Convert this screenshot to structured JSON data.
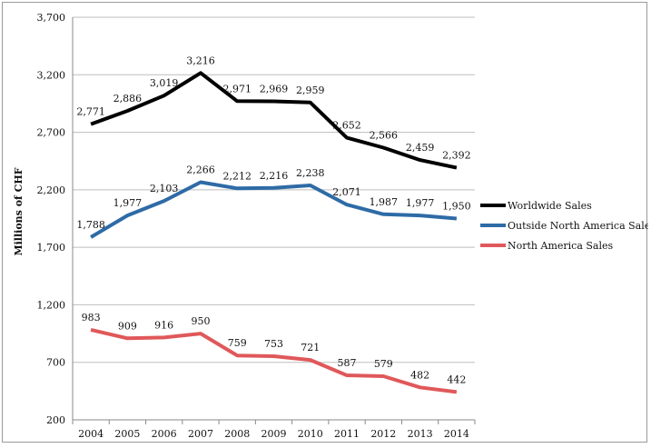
{
  "chart_data": {
    "type": "line",
    "title": "",
    "xlabel": "",
    "ylabel": "Millions of CHF",
    "ylim": [
      200,
      3700
    ],
    "yticks": [
      200,
      700,
      1200,
      1700,
      2200,
      2700,
      3200,
      3700
    ],
    "ytick_labels": [
      "200",
      "700",
      "1,200",
      "1,700",
      "2,200",
      "2,700",
      "3,200",
      "3,700"
    ],
    "grid": "horizontal",
    "legend": "right",
    "categories": [
      "2004",
      "2005",
      "2006",
      "2007",
      "2008",
      "2009",
      "2010",
      "2011",
      "2012",
      "2013",
      "2014"
    ],
    "series": [
      {
        "name": "Worldwide Sales",
        "color": "#000000",
        "values": [
          2771,
          2886,
          3019,
          3216,
          2971,
          2969,
          2959,
          2652,
          2566,
          2459,
          2392
        ],
        "labels": [
          "2,771",
          "2,886",
          "3,019",
          "3,216",
          "2,971",
          "2,969",
          "2,959",
          "2,652",
          "2,566",
          "2,459",
          "2,392"
        ]
      },
      {
        "name": "Outside North America Sales",
        "color": "#2e6ba6",
        "values": [
          1788,
          1977,
          2103,
          2266,
          2212,
          2216,
          2238,
          2071,
          1987,
          1977,
          1950
        ],
        "labels": [
          "1,788",
          "1,977",
          "2,103",
          "2,266",
          "2,212",
          "2,216",
          "2,238",
          "2,071",
          "1,987",
          "1,977",
          "1,950"
        ]
      },
      {
        "name": "North America Sales",
        "color": "#e0585a",
        "values": [
          983,
          909,
          916,
          950,
          759,
          753,
          721,
          587,
          579,
          482,
          442
        ],
        "labels": [
          "983",
          "909",
          "916",
          "950",
          "759",
          "753",
          "721",
          "587",
          "579",
          "482",
          "442"
        ]
      }
    ]
  }
}
